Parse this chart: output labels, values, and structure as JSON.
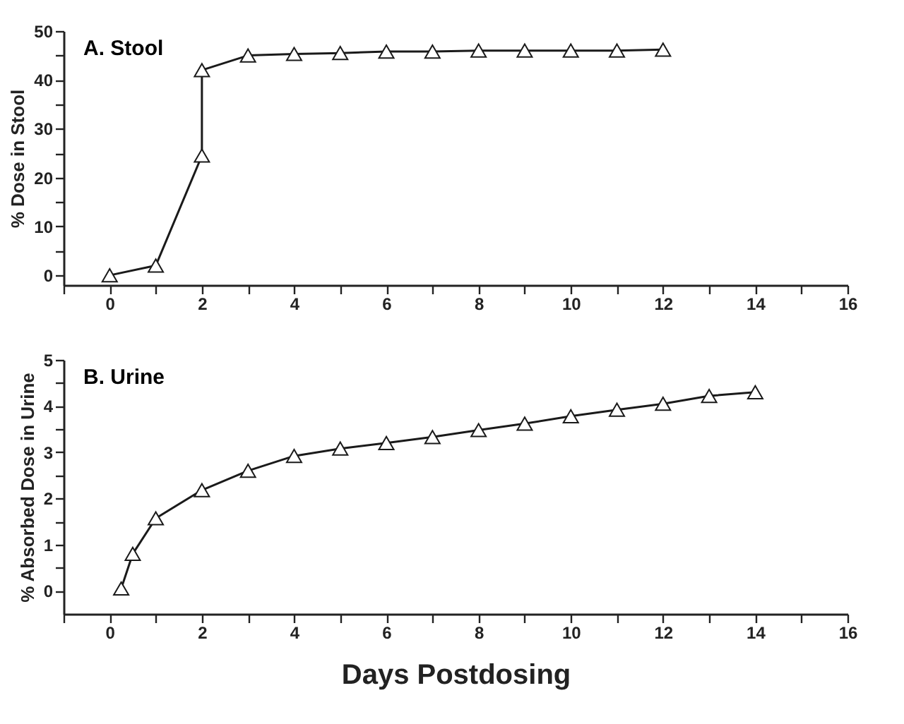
{
  "chart_data": [
    {
      "type": "line",
      "title": "A. Stool",
      "ylabel": "% Dose in Stool",
      "marker": "triangle",
      "series": [
        {
          "color": "#1a1a1a",
          "x": [
            0,
            1,
            2,
            2,
            3,
            4,
            5,
            6,
            7,
            8,
            9,
            10,
            11,
            12
          ],
          "values": [
            0,
            2,
            24.5,
            42,
            45,
            45.3,
            45.5,
            45.8,
            45.8,
            46,
            46,
            46,
            46,
            46.2
          ]
        }
      ],
      "xlim": [
        -1,
        16
      ],
      "xticks": [
        {
          "value": -1,
          "label": null
        },
        0,
        {
          "value": 1,
          "label": null
        },
        2,
        {
          "value": 3,
          "label": null
        },
        4,
        {
          "value": 5,
          "label": null
        },
        6,
        {
          "value": 7,
          "label": null
        },
        8,
        {
          "value": 9,
          "label": null
        },
        10,
        {
          "value": 11,
          "label": null
        },
        12,
        {
          "value": 13,
          "label": null
        },
        14,
        {
          "value": 15,
          "label": null
        },
        16
      ],
      "ylim": [
        -2,
        50
      ],
      "yticks": [
        0,
        {
          "value": 5,
          "label": null
        },
        10,
        {
          "value": 15,
          "label": null
        },
        20,
        {
          "value": 25,
          "label": null
        },
        30,
        {
          "value": 35,
          "label": null
        },
        40,
        {
          "value": 45,
          "label": null
        },
        50
      ]
    },
    {
      "type": "line",
      "title": "B. Urine",
      "ylabel": "% Absorbed Dose in Urine",
      "xlabel": "Days  Postdosing",
      "marker": "triangle",
      "series": [
        {
          "color": "#1a1a1a",
          "x": [
            0.25,
            0.5,
            1,
            2,
            3,
            4,
            5,
            6,
            7,
            8,
            9,
            10,
            11,
            12,
            13,
            14
          ],
          "values": [
            0.05,
            0.8,
            1.57,
            2.18,
            2.6,
            2.92,
            3.08,
            3.2,
            3.33,
            3.48,
            3.62,
            3.78,
            3.92,
            4.05,
            4.22,
            4.3
          ]
        }
      ],
      "xlim": [
        -1,
        16
      ],
      "xticks": [
        {
          "value": -1,
          "label": null
        },
        0,
        {
          "value": 1,
          "label": null
        },
        2,
        {
          "value": 3,
          "label": null
        },
        4,
        {
          "value": 5,
          "label": null
        },
        6,
        {
          "value": 7,
          "label": null
        },
        8,
        {
          "value": 9,
          "label": null
        },
        10,
        {
          "value": 11,
          "label": null
        },
        12,
        {
          "value": 13,
          "label": null
        },
        14,
        {
          "value": 15,
          "label": null
        },
        16
      ],
      "ylim": [
        -0.5,
        5
      ],
      "yticks": [
        0,
        {
          "value": 0.5,
          "label": null
        },
        1,
        {
          "value": 1.5,
          "label": null
        },
        2,
        {
          "value": 2.5,
          "label": null
        },
        3,
        {
          "value": 3.5,
          "label": null
        },
        4,
        {
          "value": 4.5,
          "label": null
        },
        5
      ]
    }
  ]
}
